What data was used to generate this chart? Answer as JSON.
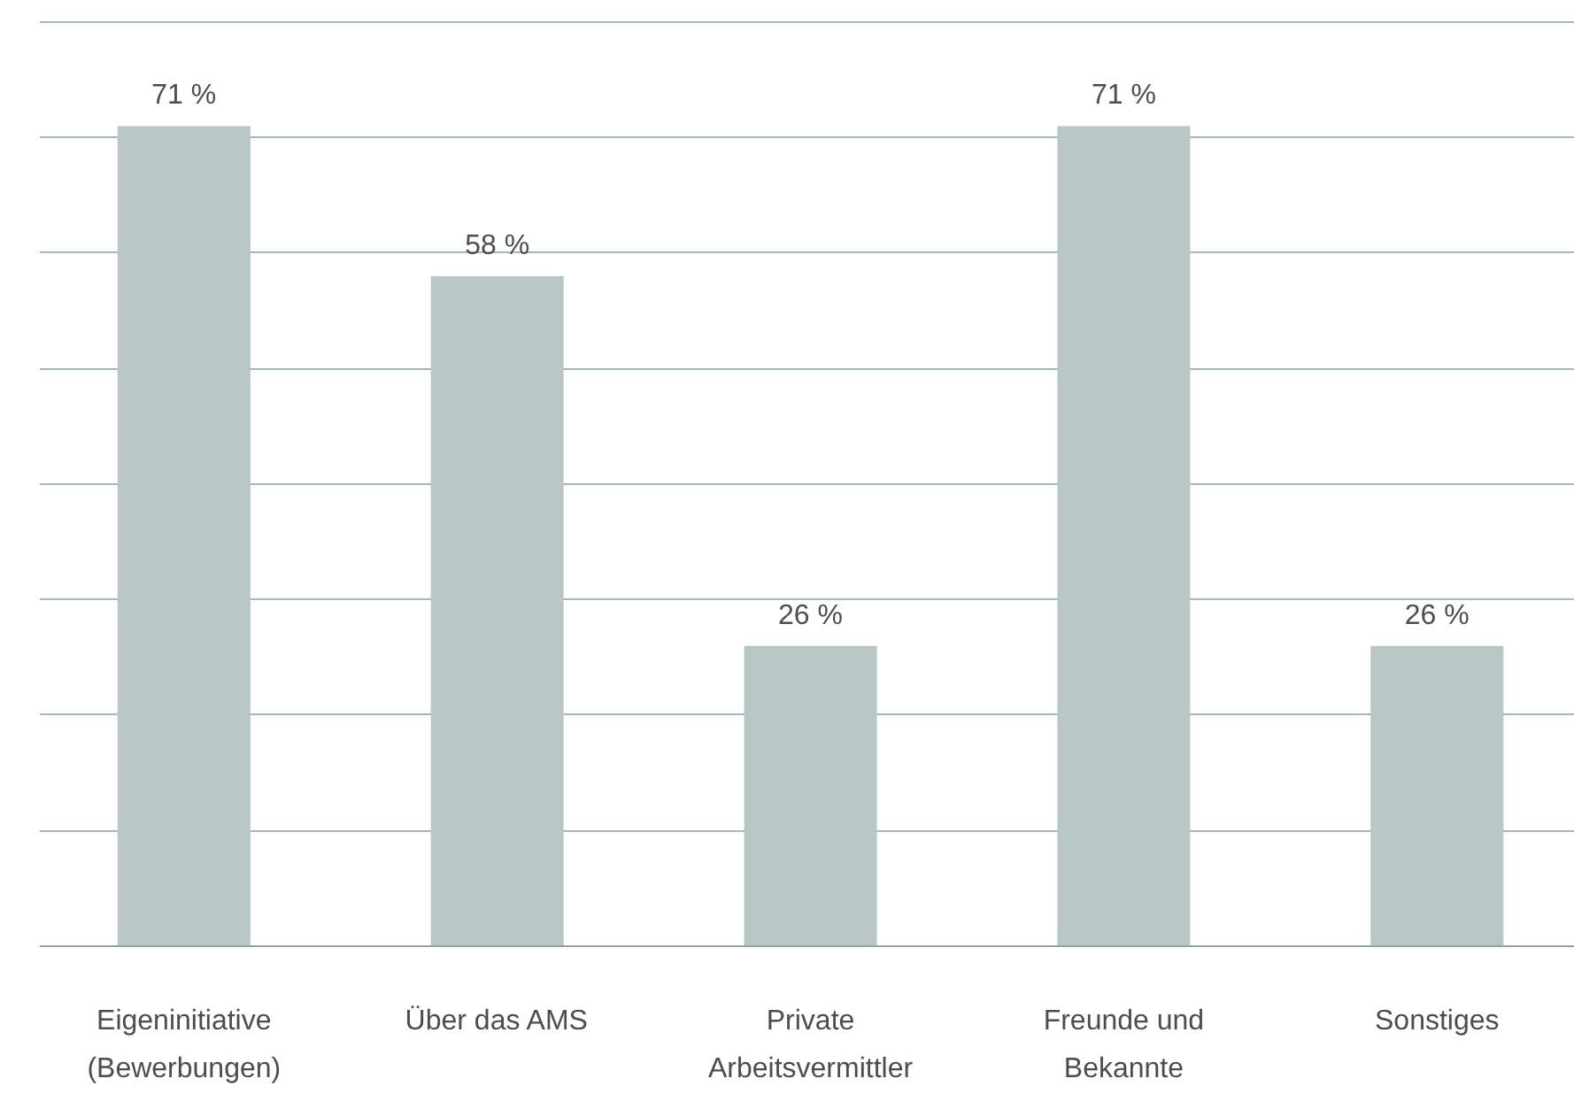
{
  "chart_data": {
    "type": "bar",
    "categories": [
      "Eigeninitiative (Bewerbungen)",
      "Über das AMS",
      "Private Arbeitsvermittler",
      "Freunde und Bekannte",
      "Sonstiges"
    ],
    "values": [
      71,
      58,
      26,
      71,
      26
    ],
    "value_labels": [
      "71 %",
      "58 %",
      "26 %",
      "71 %",
      "26 %"
    ],
    "color": "#b8c6c5",
    "yticks": [
      {
        "value": 0,
        "label": null
      },
      {
        "value": 10,
        "label": null
      },
      {
        "value": 20,
        "label": null
      },
      {
        "value": 30,
        "label": null
      },
      {
        "value": 40,
        "label": null
      },
      {
        "value": 50,
        "label": null
      },
      {
        "value": 60,
        "label": null
      },
      {
        "value": 70,
        "label": null
      },
      {
        "value": 80,
        "label": null
      }
    ],
    "grid": "y",
    "tick_labels": "x"
  }
}
